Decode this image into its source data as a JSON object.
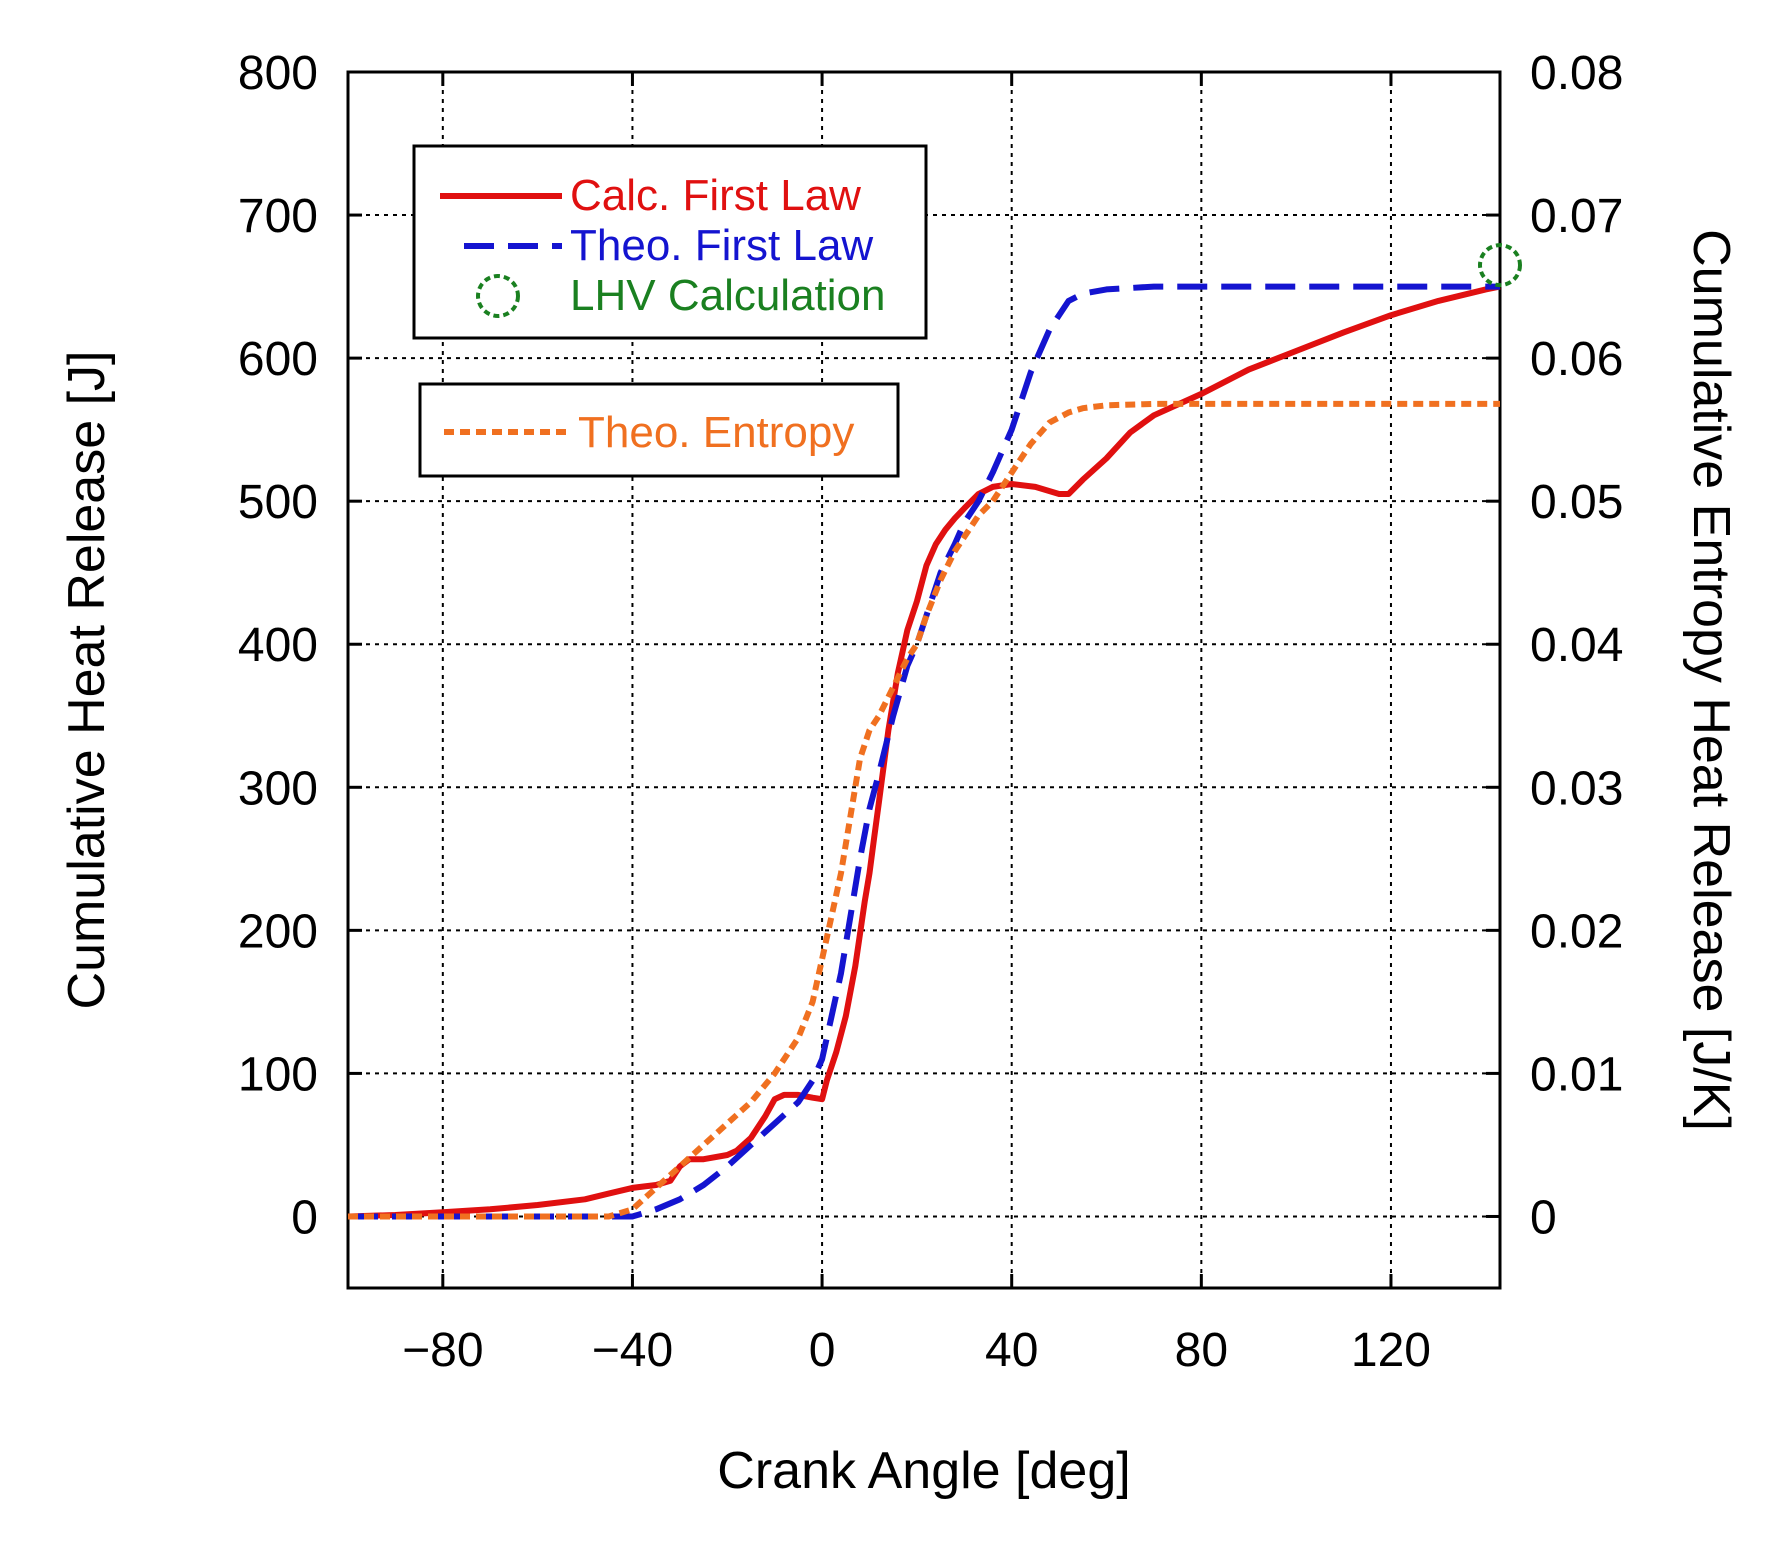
{
  "chart_data": {
    "type": "line",
    "xlabel": "Crank Angle [deg]",
    "ylabel": "Cumulative Heat Release [J]",
    "y2label": "Cumulative Entropy Heat Release [J/K]",
    "xlim": [
      -100,
      143
    ],
    "ylim": [
      -50,
      800
    ],
    "y2lim": [
      -0.005,
      0.08
    ],
    "x_ticks": [
      -80,
      -40,
      0,
      40,
      80,
      120
    ],
    "x_tick_labels": [
      "−80",
      "−40",
      "0",
      "40",
      "80",
      "120"
    ],
    "y_ticks": [
      0,
      100,
      200,
      300,
      400,
      500,
      600,
      700,
      800
    ],
    "y_tick_labels": [
      "0",
      "100",
      "200",
      "300",
      "400",
      "500",
      "600",
      "700",
      "800"
    ],
    "y2_ticks": [
      0,
      0.01,
      0.02,
      0.03,
      0.04,
      0.05,
      0.06,
      0.07,
      0.08
    ],
    "y2_tick_labels": [
      "0",
      "0.01",
      "0.02",
      "0.03",
      "0.04",
      "0.05",
      "0.06",
      "0.07",
      "0.08"
    ],
    "grid": true,
    "legend_position": "top-left",
    "series": [
      {
        "name": "Calc. First Law",
        "axis": "left",
        "style": "solid",
        "color": "#e01010",
        "x": [
          -100,
          -90,
          -80,
          -70,
          -60,
          -50,
          -45,
          -40,
          -35,
          -32,
          -30,
          -28,
          -25,
          -20,
          -18,
          -15,
          -12,
          -10,
          -8,
          -5,
          -2,
          0,
          1,
          3,
          5,
          7,
          9,
          10,
          11,
          12,
          14,
          16,
          18,
          20,
          22,
          24,
          26,
          28,
          30,
          33,
          36,
          40,
          45,
          50,
          52,
          55,
          60,
          65,
          70,
          80,
          90,
          100,
          110,
          120,
          130,
          140,
          143
        ],
        "y": [
          0,
          1,
          3,
          5,
          8,
          12,
          16,
          20,
          22,
          25,
          35,
          40,
          40,
          43,
          46,
          55,
          70,
          82,
          85,
          85,
          83,
          82,
          95,
          115,
          140,
          175,
          220,
          240,
          265,
          290,
          340,
          380,
          410,
          430,
          455,
          470,
          480,
          488,
          495,
          505,
          510,
          512,
          510,
          505,
          505,
          515,
          530,
          548,
          560,
          575,
          592,
          605,
          618,
          630,
          640,
          648,
          650
        ]
      },
      {
        "name": "Theo. First Law",
        "axis": "left",
        "style": "dashed",
        "color": "#1414d0",
        "x": [
          -100,
          -60,
          -40,
          -35,
          -30,
          -25,
          -20,
          -15,
          -10,
          -5,
          -2,
          0,
          2,
          4,
          6,
          8,
          10,
          12,
          15,
          18,
          20,
          22,
          25,
          28,
          30,
          33,
          36,
          40,
          44,
          48,
          52,
          55,
          60,
          70,
          80,
          100,
          120,
          143
        ],
        "y": [
          0,
          0,
          0,
          5,
          12,
          22,
          35,
          50,
          65,
          80,
          95,
          110,
          140,
          170,
          210,
          250,
          285,
          310,
          350,
          385,
          400,
          420,
          450,
          470,
          485,
          500,
          520,
          550,
          590,
          620,
          640,
          645,
          648,
          650,
          650,
          650,
          650,
          650
        ]
      },
      {
        "name": "Theo. Entropy",
        "axis": "right",
        "style": "dotted",
        "color": "#f07020",
        "x": [
          -100,
          -60,
          -45,
          -40,
          -35,
          -30,
          -25,
          -20,
          -15,
          -10,
          -5,
          -2,
          0,
          2,
          4,
          6,
          8,
          10,
          12,
          15,
          18,
          20,
          22,
          25,
          28,
          30,
          33,
          36,
          40,
          44,
          48,
          52,
          55,
          60,
          70,
          80,
          100,
          120,
          143
        ],
        "y": [
          0,
          0,
          0,
          0.0005,
          0.002,
          0.0035,
          0.005,
          0.0065,
          0.008,
          0.01,
          0.0125,
          0.015,
          0.018,
          0.021,
          0.024,
          0.028,
          0.032,
          0.034,
          0.035,
          0.037,
          0.039,
          0.04,
          0.042,
          0.0445,
          0.0465,
          0.0475,
          0.049,
          0.05,
          0.052,
          0.054,
          0.0555,
          0.0562,
          0.0565,
          0.0567,
          0.0568,
          0.0568,
          0.0568,
          0.0568,
          0.0568
        ]
      },
      {
        "name": "LHV Calculation",
        "axis": "left",
        "style": "marker-circle",
        "color": "#1a8020",
        "x": [
          143
        ],
        "y": [
          665
        ]
      }
    ]
  }
}
